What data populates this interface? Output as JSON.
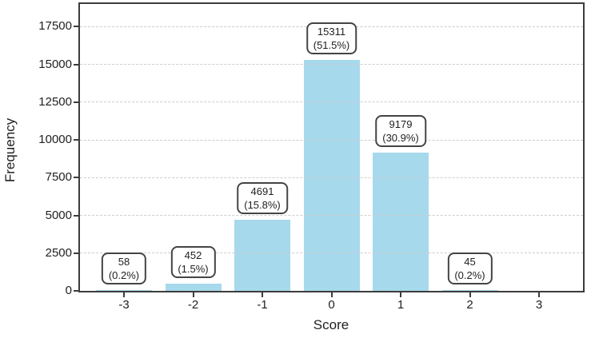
{
  "chart_data": {
    "type": "bar",
    "title": "",
    "xlabel": "Score",
    "ylabel": "Frequency",
    "categories": [
      "-3",
      "-2",
      "-1",
      "0",
      "1",
      "2",
      "3"
    ],
    "values": [
      58,
      452,
      4691,
      15311,
      9179,
      45,
      0
    ],
    "percent_labels": [
      "(0.2%)",
      "(1.5%)",
      "(15.8%)",
      "(51.5%)",
      "(30.9%)",
      "(0.2%)",
      null
    ],
    "y_ticks": [
      0,
      2500,
      5000,
      7500,
      10000,
      12500,
      15000,
      17500
    ],
    "ylim": [
      0,
      19000
    ],
    "grid": "horizontal dashed, drawn over bars",
    "legend": "none",
    "colors": {
      "bar_fill": "#a7d9ec",
      "axis": "#3c3c3c",
      "gridline": "#cdcdcd",
      "annotation_border": "#444444",
      "annotation_background": "#ffffff",
      "text": "#1f1f1f"
    }
  }
}
